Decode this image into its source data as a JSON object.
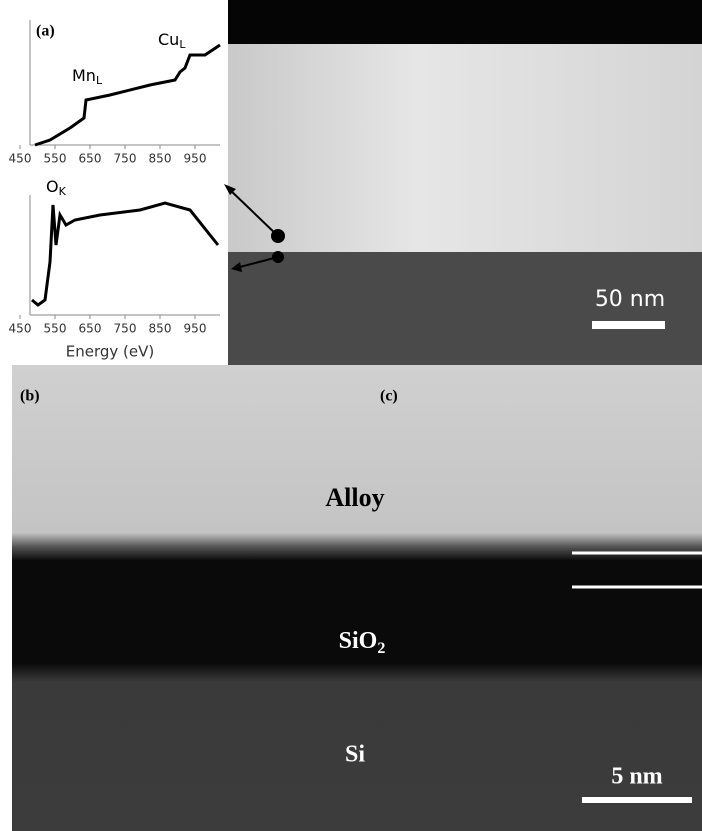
{
  "panel_a": {
    "label": "(a)",
    "spectrum_top": {
      "peaks": [
        {
          "main": "Mn",
          "sub": "L"
        },
        {
          "main": "Cu",
          "sub": "L"
        }
      ],
      "xticks": [
        450,
        550,
        650,
        750,
        850,
        950
      ]
    },
    "spectrum_bottom": {
      "peaks": [
        {
          "main": "O",
          "sub": "K"
        }
      ],
      "xticks": [
        450,
        550,
        650,
        750,
        850,
        950
      ],
      "xlabel": "Energy (eV)"
    },
    "scale_bar": "50 nm"
  },
  "panel_b": {
    "label": "(b)"
  },
  "panel_c": {
    "label": "(c)",
    "layers": [
      {
        "main": "Alloy"
      },
      {
        "main": "SiO",
        "sub": "2"
      },
      {
        "main": "Si"
      }
    ],
    "scale_bar": "5 nm"
  }
}
